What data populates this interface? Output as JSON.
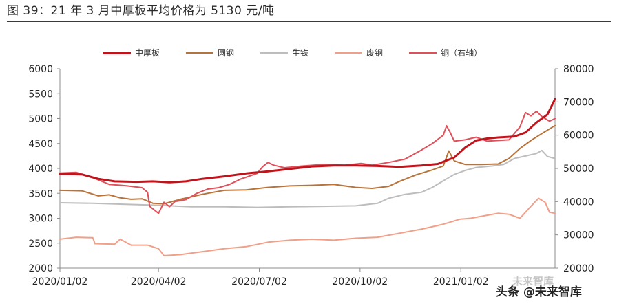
{
  "figure": {
    "title": "图 39：21 年 3 月中厚板平均价格为 5130 元/吨"
  },
  "watermark": {
    "primary": "头条 @未来智库",
    "secondary": "未来智库"
  },
  "chart_data": {
    "type": "line",
    "title": "",
    "x_tick_labels": [
      "2020/01/02",
      "2020/04/02",
      "2020/07/02",
      "2020/10/02",
      "2021/01/02"
    ],
    "x_tick_indices": [
      0,
      90,
      182,
      274,
      366
    ],
    "x_range_days": [
      0,
      452
    ],
    "y_left": {
      "lim": [
        2000,
        6000
      ],
      "ticks": [
        2000,
        2500,
        3000,
        3500,
        4000,
        4500,
        5000,
        5500,
        6000
      ]
    },
    "y_right": {
      "lim": [
        20000,
        80000
      ],
      "ticks": [
        20000,
        30000,
        40000,
        50000,
        60000,
        70000,
        80000
      ]
    },
    "grid": false,
    "legend_position": "top",
    "series": [
      {
        "name": "中厚板",
        "axis": "left",
        "color": "#c0141c",
        "width": 3,
        "points": [
          [
            0,
            3890
          ],
          [
            20,
            3880
          ],
          [
            35,
            3790
          ],
          [
            50,
            3740
          ],
          [
            70,
            3730
          ],
          [
            85,
            3740
          ],
          [
            100,
            3720
          ],
          [
            115,
            3740
          ],
          [
            130,
            3790
          ],
          [
            150,
            3840
          ],
          [
            170,
            3900
          ],
          [
            190,
            3940
          ],
          [
            210,
            3990
          ],
          [
            230,
            4040
          ],
          [
            250,
            4060
          ],
          [
            270,
            4060
          ],
          [
            290,
            4050
          ],
          [
            310,
            4030
          ],
          [
            330,
            4060
          ],
          [
            345,
            4090
          ],
          [
            360,
            4220
          ],
          [
            370,
            4420
          ],
          [
            380,
            4560
          ],
          [
            390,
            4600
          ],
          [
            400,
            4620
          ],
          [
            415,
            4640
          ],
          [
            425,
            4720
          ],
          [
            435,
            4920
          ],
          [
            445,
            5080
          ],
          [
            452,
            5390
          ]
        ]
      },
      {
        "name": "圆钢",
        "axis": "left",
        "color": "#b8733a",
        "width": 2,
        "points": [
          [
            0,
            3560
          ],
          [
            20,
            3550
          ],
          [
            35,
            3450
          ],
          [
            45,
            3470
          ],
          [
            55,
            3410
          ],
          [
            65,
            3380
          ],
          [
            75,
            3390
          ],
          [
            85,
            3300
          ],
          [
            95,
            3290
          ],
          [
            110,
            3380
          ],
          [
            130,
            3480
          ],
          [
            150,
            3560
          ],
          [
            170,
            3570
          ],
          [
            190,
            3620
          ],
          [
            210,
            3650
          ],
          [
            230,
            3660
          ],
          [
            250,
            3680
          ],
          [
            270,
            3620
          ],
          [
            285,
            3600
          ],
          [
            300,
            3640
          ],
          [
            310,
            3740
          ],
          [
            325,
            3870
          ],
          [
            340,
            3970
          ],
          [
            350,
            4050
          ],
          [
            355,
            4350
          ],
          [
            360,
            4150
          ],
          [
            370,
            4080
          ],
          [
            385,
            4080
          ],
          [
            400,
            4090
          ],
          [
            410,
            4200
          ],
          [
            420,
            4400
          ],
          [
            430,
            4560
          ],
          [
            440,
            4700
          ],
          [
            452,
            4860
          ]
        ]
      },
      {
        "name": "生铁",
        "axis": "left",
        "color": "#bdbdbd",
        "width": 2,
        "points": [
          [
            0,
            3310
          ],
          [
            30,
            3300
          ],
          [
            60,
            3280
          ],
          [
            90,
            3260
          ],
          [
            120,
            3230
          ],
          [
            150,
            3230
          ],
          [
            180,
            3220
          ],
          [
            210,
            3230
          ],
          [
            240,
            3240
          ],
          [
            270,
            3250
          ],
          [
            290,
            3300
          ],
          [
            300,
            3400
          ],
          [
            315,
            3480
          ],
          [
            330,
            3520
          ],
          [
            340,
            3620
          ],
          [
            350,
            3750
          ],
          [
            360,
            3880
          ],
          [
            370,
            3960
          ],
          [
            380,
            4020
          ],
          [
            395,
            4050
          ],
          [
            405,
            4080
          ],
          [
            415,
            4200
          ],
          [
            425,
            4250
          ],
          [
            435,
            4300
          ],
          [
            440,
            4360
          ],
          [
            445,
            4240
          ],
          [
            452,
            4200
          ]
        ]
      },
      {
        "name": "废钢",
        "axis": "left",
        "color": "#f0a088",
        "width": 2,
        "points": [
          [
            0,
            2580
          ],
          [
            15,
            2620
          ],
          [
            30,
            2610
          ],
          [
            32,
            2490
          ],
          [
            50,
            2480
          ],
          [
            55,
            2580
          ],
          [
            65,
            2460
          ],
          [
            80,
            2460
          ],
          [
            90,
            2390
          ],
          [
            95,
            2250
          ],
          [
            110,
            2270
          ],
          [
            130,
            2330
          ],
          [
            150,
            2390
          ],
          [
            170,
            2430
          ],
          [
            190,
            2520
          ],
          [
            210,
            2560
          ],
          [
            230,
            2580
          ],
          [
            250,
            2560
          ],
          [
            270,
            2600
          ],
          [
            290,
            2620
          ],
          [
            310,
            2700
          ],
          [
            330,
            2780
          ],
          [
            350,
            2880
          ],
          [
            365,
            2980
          ],
          [
            375,
            3000
          ],
          [
            390,
            3060
          ],
          [
            400,
            3100
          ],
          [
            410,
            3080
          ],
          [
            420,
            3000
          ],
          [
            430,
            3240
          ],
          [
            437,
            3400
          ],
          [
            443,
            3320
          ],
          [
            447,
            3120
          ],
          [
            452,
            3100
          ]
        ]
      },
      {
        "name": "铜（右轴）",
        "axis": "right",
        "color": "#e0505a",
        "width": 2,
        "points": [
          [
            0,
            48600
          ],
          [
            15,
            48800
          ],
          [
            30,
            47200
          ],
          [
            45,
            45200
          ],
          [
            60,
            44800
          ],
          [
            75,
            44200
          ],
          [
            80,
            42800
          ],
          [
            82,
            38600
          ],
          [
            85,
            37800
          ],
          [
            90,
            36500
          ],
          [
            95,
            39800
          ],
          [
            100,
            38500
          ],
          [
            105,
            40000
          ],
          [
            115,
            40600
          ],
          [
            125,
            42500
          ],
          [
            135,
            43800
          ],
          [
            145,
            44200
          ],
          [
            155,
            45200
          ],
          [
            165,
            46800
          ],
          [
            180,
            48500
          ],
          [
            185,
            50500
          ],
          [
            190,
            51800
          ],
          [
            195,
            51000
          ],
          [
            205,
            50200
          ],
          [
            220,
            50700
          ],
          [
            240,
            51200
          ],
          [
            260,
            51000
          ],
          [
            275,
            51500
          ],
          [
            285,
            51000
          ],
          [
            300,
            51800
          ],
          [
            315,
            52800
          ],
          [
            330,
            55500
          ],
          [
            340,
            57500
          ],
          [
            350,
            60000
          ],
          [
            353,
            62800
          ],
          [
            356,
            61000
          ],
          [
            360,
            58200
          ],
          [
            370,
            58600
          ],
          [
            380,
            59400
          ],
          [
            390,
            58200
          ],
          [
            400,
            58400
          ],
          [
            410,
            58600
          ],
          [
            420,
            62500
          ],
          [
            425,
            66800
          ],
          [
            430,
            65800
          ],
          [
            435,
            67200
          ],
          [
            440,
            65600
          ],
          [
            447,
            64200
          ],
          [
            452,
            65000
          ]
        ]
      }
    ]
  }
}
